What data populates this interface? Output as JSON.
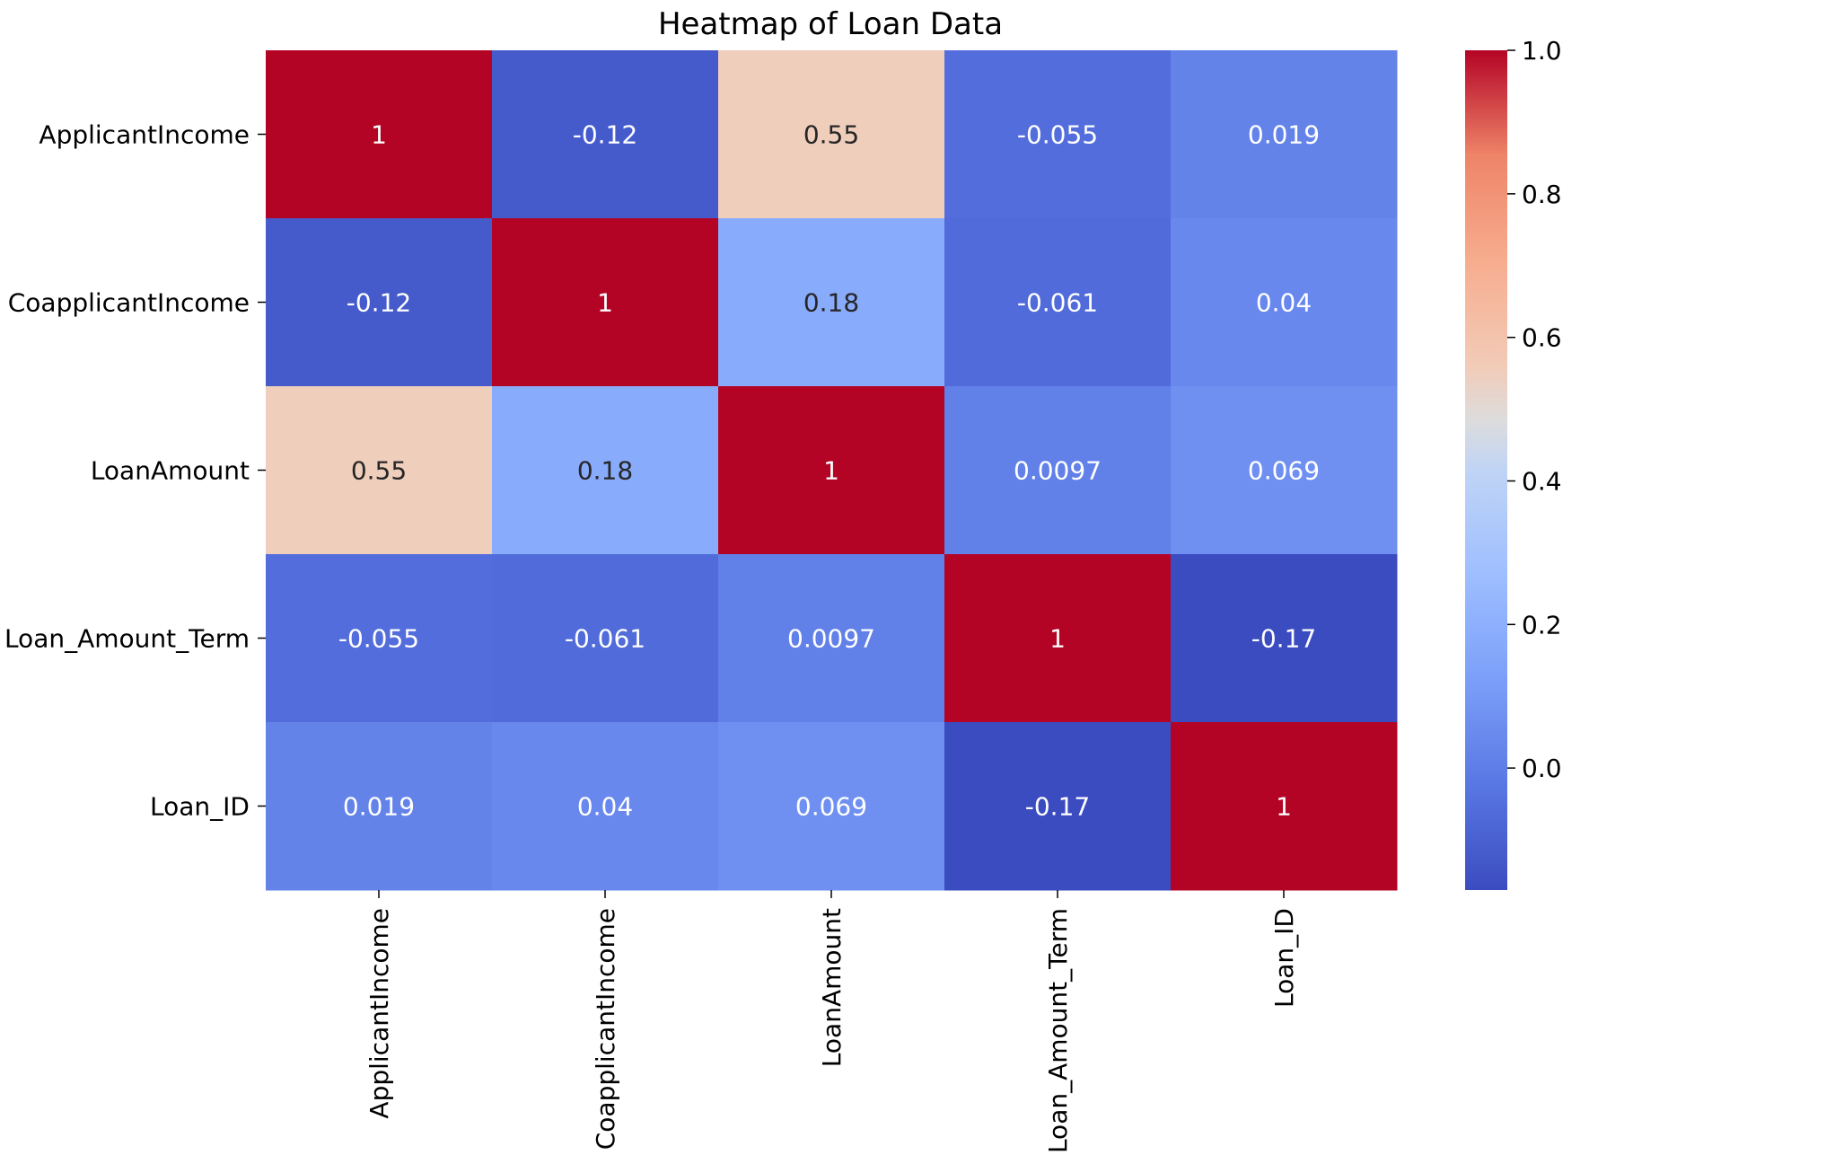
{
  "chart_data": {
    "type": "heatmap",
    "title": "Heatmap of Loan Data",
    "xlabel": "",
    "ylabel": "",
    "rows": [
      "ApplicantIncome",
      "CoapplicantIncome",
      "LoanAmount",
      "Loan_Amount_Term",
      "Loan_ID"
    ],
    "columns": [
      "ApplicantIncome",
      "CoapplicantIncome",
      "LoanAmount",
      "Loan_Amount_Term",
      "Loan_ID"
    ],
    "values": [
      [
        1,
        -0.12,
        0.55,
        -0.055,
        0.019
      ],
      [
        -0.12,
        1,
        0.18,
        -0.061,
        0.04
      ],
      [
        0.55,
        0.18,
        1,
        0.0097,
        0.069
      ],
      [
        -0.055,
        -0.061,
        0.0097,
        1,
        -0.17
      ],
      [
        0.019,
        0.04,
        0.069,
        -0.17,
        1
      ]
    ],
    "annotations": [
      [
        "1",
        "-0.12",
        "0.55",
        "-0.055",
        "0.019"
      ],
      [
        "-0.12",
        "1",
        "0.18",
        "-0.061",
        "0.04"
      ],
      [
        "0.55",
        "0.18",
        "1",
        "0.0097",
        "0.069"
      ],
      [
        "-0.055",
        "-0.061",
        "0.0097",
        "1",
        "-0.17"
      ],
      [
        "0.019",
        "0.04",
        "0.069",
        "-0.17",
        "1"
      ]
    ],
    "colormap": "coolwarm",
    "colorbar": {
      "range": [
        -0.17,
        1.0
      ],
      "ticks": [
        1.0,
        0.8,
        0.6,
        0.4,
        0.2,
        0.0
      ],
      "tick_labels": [
        "1.0",
        "0.8",
        "0.6",
        "0.4",
        "0.2",
        "0.0"
      ]
    },
    "grid": false
  }
}
